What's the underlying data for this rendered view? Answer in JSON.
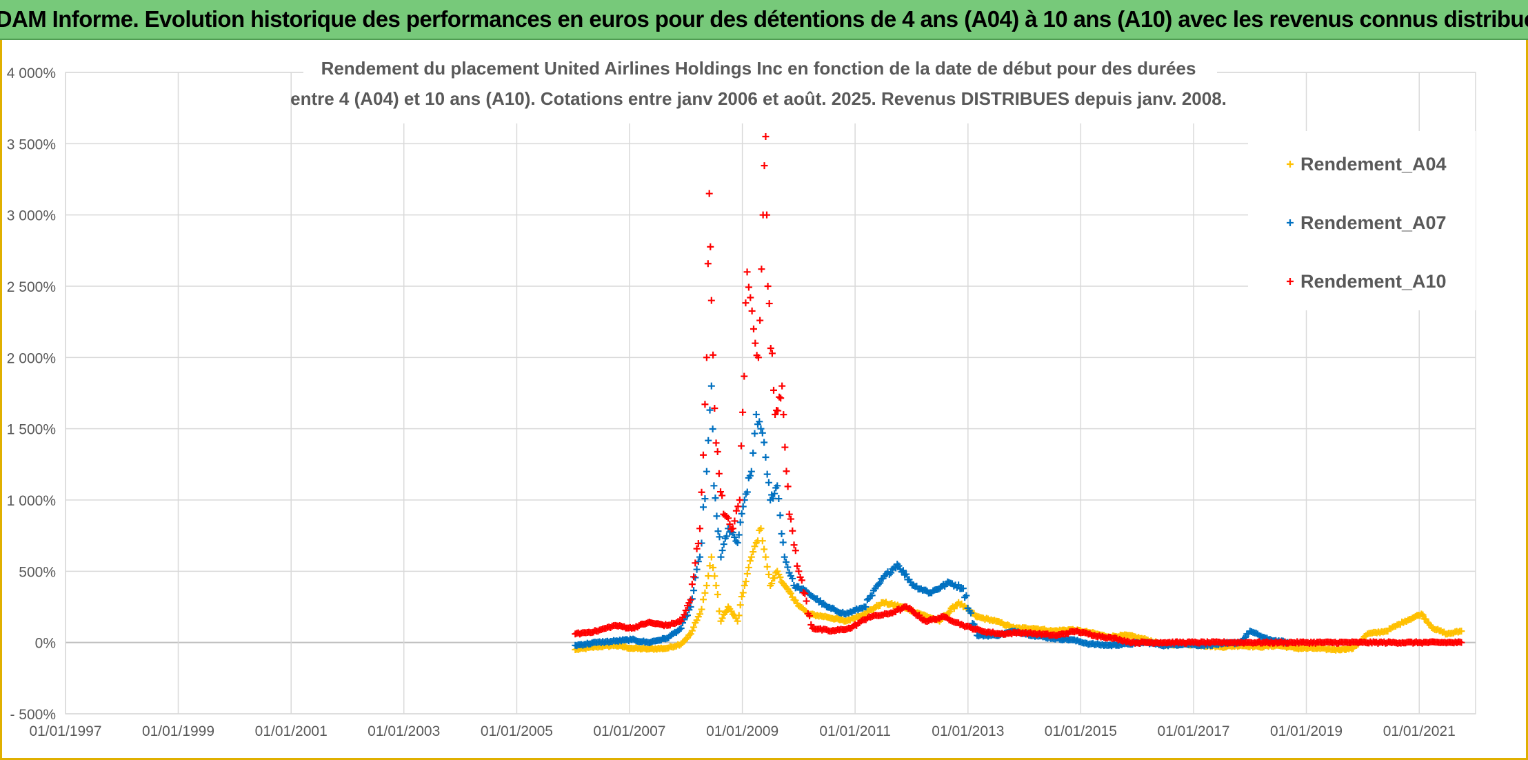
{
  "banner": {
    "title": "ADAM Informe. Evolution historique des performances en euros pour des détentions de 4 ans (A04) à 10 ans (A10) avec les revenus connus distribués"
  },
  "colors": {
    "banner_bg": "#77c97a",
    "frame": "#e0b000",
    "grid": "#d9d9d9",
    "axis_text": "#595959",
    "series_A04": "#ffc000",
    "series_A07": "#0070c0",
    "series_A10": "#ff0000"
  },
  "chart_data": {
    "type": "scatter",
    "title_line1": "Rendement du placement United Airlines Holdings Inc en fonction de la date de début pour des durées",
    "title_line2": "entre 4 (A04) et 10 ans (A10). Cotations entre janv 2006 et août. 2025. Revenus DISTRIBUES depuis janv. 2008.",
    "xlabel": "",
    "ylabel": "",
    "marker": "+",
    "legend_position": "top-right",
    "grid": true,
    "x_range": [
      "1997-01-01",
      "2022-01-01"
    ],
    "y_range": [
      -500,
      4000
    ],
    "x_ticks": [
      "01/01/1997",
      "01/01/1999",
      "01/01/2001",
      "01/01/2003",
      "01/01/2005",
      "01/01/2007",
      "01/01/2009",
      "01/01/2011",
      "01/01/2013",
      "01/01/2015",
      "01/01/2017",
      "01/01/2019",
      "01/01/2021"
    ],
    "x_tick_dates": [
      "1997-01-01",
      "1999-01-01",
      "2001-01-01",
      "2003-01-01",
      "2005-01-01",
      "2007-01-01",
      "2009-01-01",
      "2011-01-01",
      "2013-01-01",
      "2015-01-01",
      "2017-01-01",
      "2019-01-01",
      "2021-01-01"
    ],
    "y_ticks": [
      {
        "value": -500,
        "label": "- 500%"
      },
      {
        "value": 0,
        "label": "0%"
      },
      {
        "value": 500,
        "label": "500%"
      },
      {
        "value": 1000,
        "label": "1 000%"
      },
      {
        "value": 1500,
        "label": "1 500%"
      },
      {
        "value": 2000,
        "label": "2 000%"
      },
      {
        "value": 2500,
        "label": "2 500%"
      },
      {
        "value": 3000,
        "label": "3 000%"
      },
      {
        "value": 3500,
        "label": "3 500%"
      },
      {
        "value": 4000,
        "label": "4 000%"
      }
    ],
    "series": [
      {
        "name": "Rendement_A04",
        "color": "#ffc000",
        "points": [
          [
            "2006-01-15",
            -50
          ],
          [
            "2006-06-01",
            -30
          ],
          [
            "2006-10-01",
            -20
          ],
          [
            "2007-01-15",
            -40
          ],
          [
            "2007-05-01",
            -45
          ],
          [
            "2007-09-01",
            -40
          ],
          [
            "2007-12-01",
            -10
          ],
          [
            "2008-02-01",
            60
          ],
          [
            "2008-04-01",
            200
          ],
          [
            "2008-05-15",
            400
          ],
          [
            "2008-06-15",
            600
          ],
          [
            "2008-07-15",
            400
          ],
          [
            "2008-08-15",
            150
          ],
          [
            "2008-10-01",
            250
          ],
          [
            "2008-12-01",
            150
          ],
          [
            "2009-01-15",
            400
          ],
          [
            "2009-03-01",
            600
          ],
          [
            "2009-04-01",
            700
          ],
          [
            "2009-05-01",
            800
          ],
          [
            "2009-06-01",
            600
          ],
          [
            "2009-07-01",
            400
          ],
          [
            "2009-08-15",
            500
          ],
          [
            "2009-10-01",
            400
          ],
          [
            "2009-12-01",
            300
          ],
          [
            "2010-03-01",
            200
          ],
          [
            "2010-07-01",
            180
          ],
          [
            "2010-11-01",
            150
          ],
          [
            "2011-03-01",
            200
          ],
          [
            "2011-07-01",
            280
          ],
          [
            "2011-11-01",
            250
          ],
          [
            "2012-03-01",
            200
          ],
          [
            "2012-07-01",
            150
          ],
          [
            "2012-11-01",
            280
          ],
          [
            "2013-03-01",
            180
          ],
          [
            "2013-07-01",
            150
          ],
          [
            "2013-11-01",
            100
          ],
          [
            "2014-03-01",
            100
          ],
          [
            "2014-07-01",
            80
          ],
          [
            "2014-11-01",
            90
          ],
          [
            "2015-03-01",
            70
          ],
          [
            "2015-07-01",
            40
          ],
          [
            "2015-11-01",
            50
          ],
          [
            "2016-03-01",
            20
          ],
          [
            "2016-07-01",
            -20
          ],
          [
            "2016-11-01",
            -10
          ],
          [
            "2017-03-01",
            -20
          ],
          [
            "2017-07-01",
            -30
          ],
          [
            "2017-11-01",
            -20
          ],
          [
            "2018-03-01",
            -30
          ],
          [
            "2018-07-01",
            -20
          ],
          [
            "2018-11-01",
            -40
          ],
          [
            "2019-03-01",
            -40
          ],
          [
            "2019-07-01",
            -50
          ],
          [
            "2019-11-01",
            -40
          ],
          [
            "2020-02-01",
            60
          ],
          [
            "2020-06-01",
            80
          ],
          [
            "2020-10-01",
            150
          ],
          [
            "2021-01-15",
            200
          ],
          [
            "2021-04-01",
            100
          ],
          [
            "2021-07-01",
            60
          ],
          [
            "2021-10-01",
            80
          ]
        ]
      },
      {
        "name": "Rendement_A07",
        "color": "#0070c0",
        "points": [
          [
            "2006-01-15",
            -20
          ],
          [
            "2006-06-01",
            0
          ],
          [
            "2006-10-01",
            10
          ],
          [
            "2007-01-15",
            20
          ],
          [
            "2007-05-01",
            0
          ],
          [
            "2007-09-01",
            30
          ],
          [
            "2007-12-01",
            100
          ],
          [
            "2008-02-01",
            250
          ],
          [
            "2008-04-01",
            600
          ],
          [
            "2008-05-15",
            1200
          ],
          [
            "2008-06-15",
            1800
          ],
          [
            "2008-07-01",
            1100
          ],
          [
            "2008-08-15",
            600
          ],
          [
            "2008-10-01",
            800
          ],
          [
            "2008-12-01",
            700
          ],
          [
            "2009-01-15",
            1000
          ],
          [
            "2009-03-01",
            1200
          ],
          [
            "2009-04-01",
            1600
          ],
          [
            "2009-05-01",
            1500
          ],
          [
            "2009-06-01",
            1300
          ],
          [
            "2009-07-01",
            1000
          ],
          [
            "2009-08-15",
            1100
          ],
          [
            "2009-10-01",
            600
          ],
          [
            "2009-12-01",
            400
          ],
          [
            "2010-03-01",
            350
          ],
          [
            "2010-07-01",
            250
          ],
          [
            "2010-11-01",
            200
          ],
          [
            "2011-03-01",
            250
          ],
          [
            "2011-07-01",
            450
          ],
          [
            "2011-10-01",
            550
          ],
          [
            "2012-01-15",
            400
          ],
          [
            "2012-05-01",
            350
          ],
          [
            "2012-09-01",
            420
          ],
          [
            "2012-12-01",
            380
          ],
          [
            "2013-03-01",
            50
          ],
          [
            "2013-07-01",
            50
          ],
          [
            "2013-11-01",
            80
          ],
          [
            "2014-03-01",
            50
          ],
          [
            "2014-07-01",
            30
          ],
          [
            "2014-11-01",
            20
          ],
          [
            "2015-03-01",
            -10
          ],
          [
            "2015-07-01",
            -20
          ],
          [
            "2015-11-01",
            -10
          ],
          [
            "2016-03-01",
            0
          ],
          [
            "2016-07-01",
            -20
          ],
          [
            "2016-11-01",
            -10
          ],
          [
            "2017-03-01",
            -20
          ],
          [
            "2017-07-01",
            -10
          ],
          [
            "2017-11-01",
            0
          ],
          [
            "2018-01-01",
            80
          ],
          [
            "2018-05-01",
            20
          ],
          [
            "2018-09-01",
            0
          ]
        ]
      },
      {
        "name": "Rendement_A10",
        "color": "#ff0000",
        "points": [
          [
            "2006-01-15",
            60
          ],
          [
            "2006-06-01",
            80
          ],
          [
            "2006-10-01",
            120
          ],
          [
            "2007-01-15",
            100
          ],
          [
            "2007-05-01",
            140
          ],
          [
            "2007-09-01",
            120
          ],
          [
            "2007-12-01",
            150
          ],
          [
            "2008-02-01",
            300
          ],
          [
            "2008-04-01",
            800
          ],
          [
            "2008-05-15",
            2000
          ],
          [
            "2008-06-01",
            3150
          ],
          [
            "2008-06-15",
            2400
          ],
          [
            "2008-07-15",
            1400
          ],
          [
            "2008-09-01",
            900
          ],
          [
            "2008-11-01",
            800
          ],
          [
            "2008-12-15",
            1000
          ],
          [
            "2009-02-01",
            2600
          ],
          [
            "2009-03-15",
            2200
          ],
          [
            "2009-04-15",
            2000
          ],
          [
            "2009-05-15",
            3000
          ],
          [
            "2009-06-01",
            3550
          ],
          [
            "2009-06-15",
            2500
          ],
          [
            "2009-08-01",
            1600
          ],
          [
            "2009-09-15",
            1800
          ],
          [
            "2009-11-01",
            900
          ],
          [
            "2010-01-01",
            500
          ],
          [
            "2010-04-01",
            100
          ],
          [
            "2010-08-01",
            80
          ],
          [
            "2010-12-01",
            100
          ],
          [
            "2011-04-01",
            180
          ],
          [
            "2011-08-01",
            200
          ],
          [
            "2011-12-01",
            250
          ],
          [
            "2012-04-01",
            150
          ],
          [
            "2012-08-01",
            180
          ],
          [
            "2012-12-01",
            120
          ],
          [
            "2013-04-01",
            80
          ],
          [
            "2013-08-01",
            60
          ],
          [
            "2013-12-01",
            70
          ],
          [
            "2014-04-01",
            60
          ],
          [
            "2014-08-01",
            50
          ],
          [
            "2014-12-01",
            80
          ],
          [
            "2015-04-01",
            50
          ],
          [
            "2015-08-01",
            30
          ],
          [
            "2015-12-01",
            0
          ],
          [
            "2016-06-01",
            0
          ],
          [
            "2017-01-01",
            0
          ],
          [
            "2018-01-01",
            0
          ],
          [
            "2019-01-01",
            0
          ],
          [
            "2020-01-01",
            0
          ],
          [
            "2021-01-01",
            0
          ],
          [
            "2021-10-01",
            0
          ]
        ]
      }
    ]
  }
}
